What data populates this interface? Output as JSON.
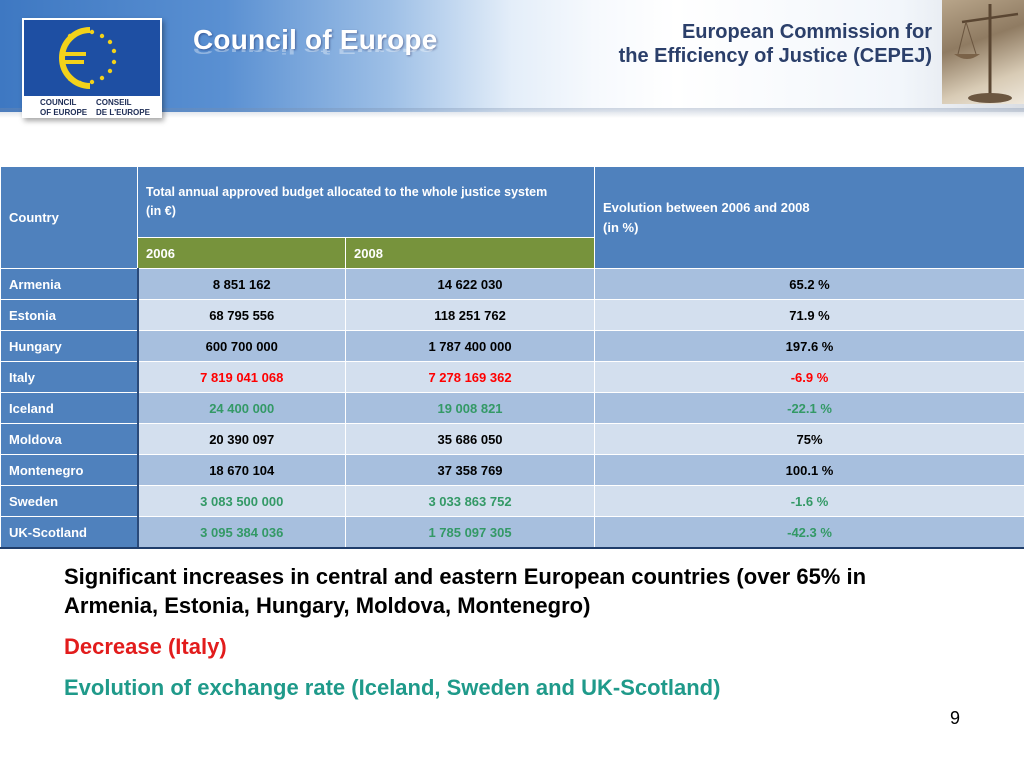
{
  "header": {
    "org_title": "Council of Europe",
    "logo_left": [
      "COUNCIL",
      "OF EUROPE"
    ],
    "logo_right": [
      "CONSEIL",
      "DE L'EUROPE"
    ],
    "commission_title": [
      "European Commission for",
      "the Efficiency of Justice (CEPEJ)"
    ]
  },
  "table": {
    "country_header": "Country",
    "budget_header": [
      "Total annual approved budget allocated to the whole justice system",
      "(in €)"
    ],
    "evolution_header": [
      "Evolution between 2006 and 2008",
      "(in %)"
    ],
    "years": [
      "2006",
      "2008"
    ],
    "rows": [
      {
        "country": "Armenia",
        "y2006": "8 851 162",
        "y2008": "14 622 030",
        "evolution": "65.2 %",
        "tone": "normal"
      },
      {
        "country": "Estonia",
        "y2006": "68 795 556",
        "y2008": "118 251 762",
        "evolution": "71.9 %",
        "tone": "normal"
      },
      {
        "country": "Hungary",
        "y2006": "600 700 000",
        "y2008": "1 787 400 000",
        "evolution": "197.6 %",
        "tone": "normal"
      },
      {
        "country": "Italy",
        "y2006": "7 819 041 068",
        "y2008": "7 278 169 362",
        "evolution": "-6.9 %",
        "tone": "red"
      },
      {
        "country": "Iceland",
        "y2006": "24 400 000",
        "y2008": "19 008 821",
        "evolution": "-22.1 %",
        "tone": "green"
      },
      {
        "country": "Moldova",
        "y2006": "20 390 097",
        "y2008": "35 686 050",
        "evolution": "75%",
        "tone": "normal"
      },
      {
        "country": "Montenegro",
        "y2006": "18 670 104",
        "y2008": "37 358 769",
        "evolution": "100.1 %",
        "tone": "normal"
      },
      {
        "country": "Sweden",
        "y2006": "3 083 500 000",
        "y2008": "3 033 863 752",
        "evolution": "-1.6 %",
        "tone": "green"
      },
      {
        "country": "UK-Scotland",
        "y2006": "3 095 384 036",
        "y2008": "1 785 097 305",
        "evolution": "-42.3 %",
        "tone": "green"
      }
    ]
  },
  "notes": {
    "increase": "Significant increases in central and eastern European countries (over 65% in Armenia, Estonia, Hungary, Moldova, Montenegro)",
    "decrease": "Decrease (Italy)",
    "exchange": "Evolution of exchange rate (Iceland, Sweden and UK-Scotland)"
  },
  "page_number": "9",
  "colors": {
    "header_blue": "#4f81bd",
    "header_green": "#77933c",
    "row_light": "#d3dfee",
    "row_dark": "#a7bfde",
    "increase_text": "#000000",
    "decrease_text": "#e21c1c",
    "exchange_text": "#1f9a8a"
  }
}
